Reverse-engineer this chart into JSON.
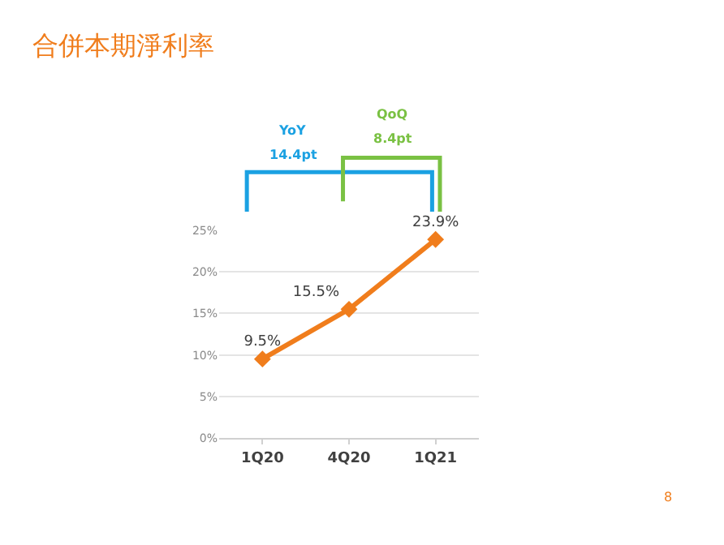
{
  "chart_data": {
    "type": "line",
    "title": "合併本期淨利率",
    "categories": [
      "1Q20",
      "4Q20",
      "1Q21"
    ],
    "series": [
      {
        "color": "#f07d1c",
        "values": [
          9.5,
          15.5,
          23.9
        ],
        "value_labels": [
          "9.5%",
          "15.5%",
          "23.9%"
        ]
      }
    ],
    "ylim": [
      0,
      25
    ],
    "yticks": [
      {
        "value": 0,
        "label": "0%"
      },
      {
        "value": 5,
        "label": "5%"
      },
      {
        "value": 10,
        "label": "10%"
      },
      {
        "value": 15,
        "label": "15%"
      },
      {
        "value": 20,
        "label": "20%"
      },
      {
        "value": 25,
        "label": "25%"
      }
    ],
    "grid": "y",
    "marker": "diamond",
    "line_style": "solid",
    "annotations": [
      "YoY",
      "14.4pt",
      "QoQ",
      "8.4pt",
      "8"
    ]
  }
}
